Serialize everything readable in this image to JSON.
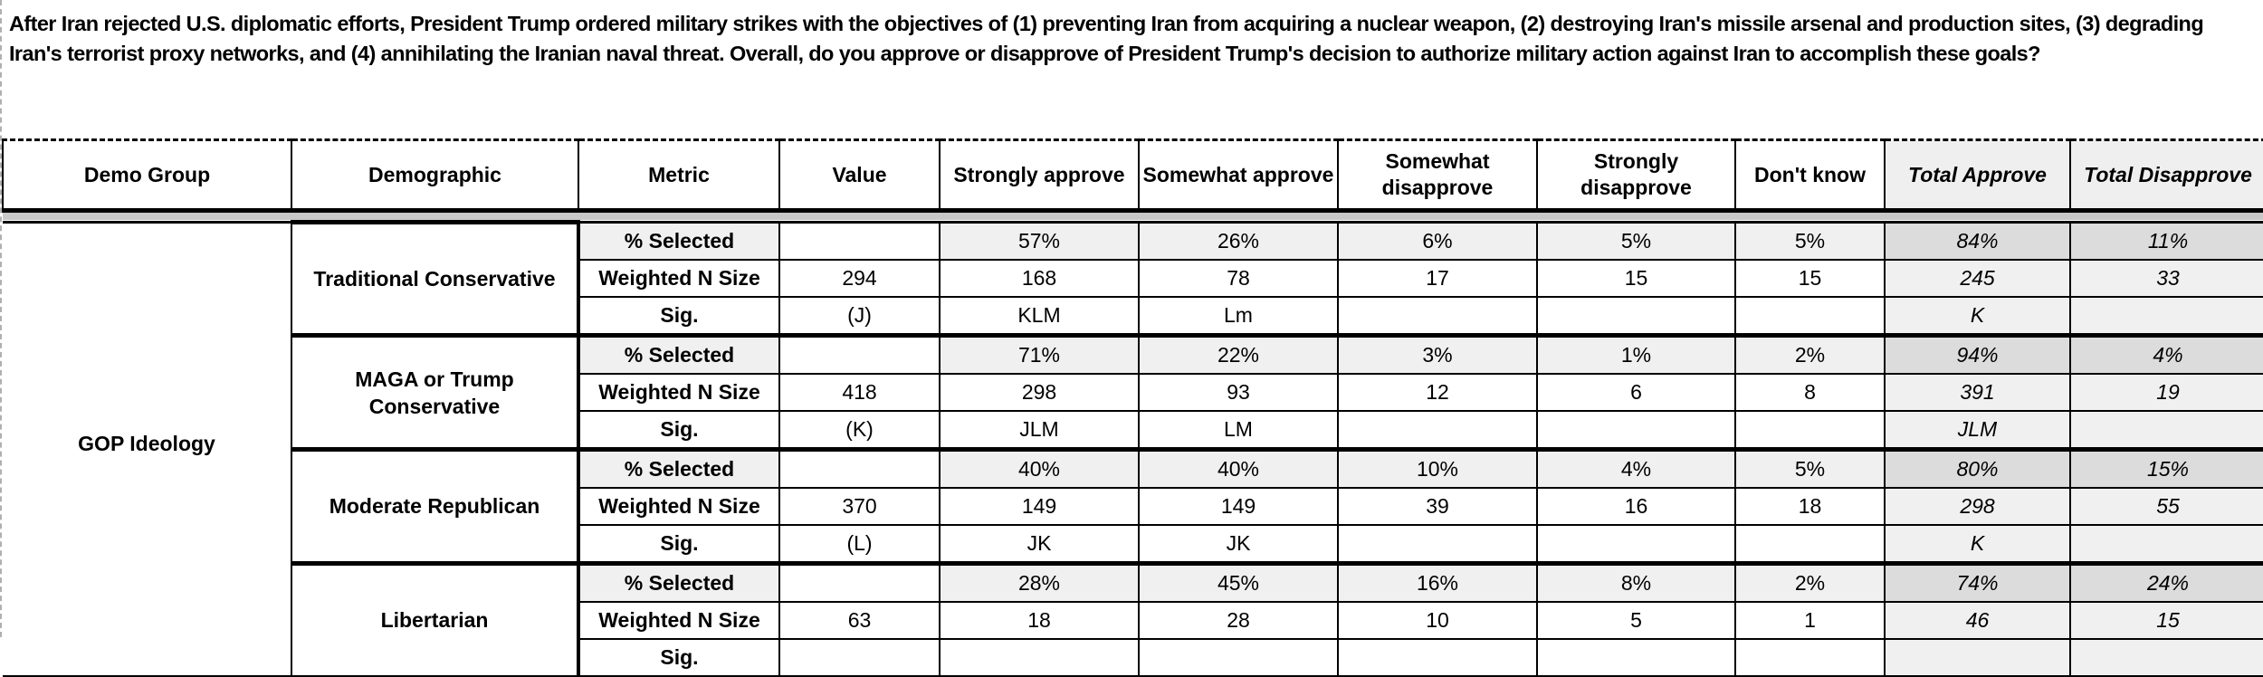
{
  "question": "After Iran rejected U.S. diplomatic efforts, President Trump ordered military strikes with the objectives of (1) preventing Iran from acquiring a nuclear weapon, (2) destroying Iran's missile arsenal and production sites, (3) degrading Iran's terrorist proxy networks, and (4) annihilating the Iranian naval threat. Overall, do you approve or disapprove of President Trump's decision to authorize military action against Iran to accomplish these goals?",
  "headers": [
    "Demo Group",
    "Demographic",
    "Metric",
    "Value",
    "Strongly approve",
    "Somewhat approve",
    "Somewhat disapprove",
    "Strongly disapprove",
    "Don't know",
    "Total Approve",
    "Total Disapprove"
  ],
  "demo_group": "GOP Ideology",
  "metrics": [
    "% Selected",
    "Weighted N Size",
    "Sig."
  ],
  "groups": [
    {
      "name": "Traditional Conservative",
      "rows": [
        [
          "",
          "57%",
          "26%",
          "6%",
          "5%",
          "5%",
          "84%",
          "11%"
        ],
        [
          "294",
          "168",
          "78",
          "17",
          "15",
          "15",
          "245",
          "33"
        ],
        [
          "(J)",
          "KLM",
          "Lm",
          "",
          "",
          "",
          "K",
          ""
        ]
      ]
    },
    {
      "name": "MAGA or Trump Conservative",
      "rows": [
        [
          "",
          "71%",
          "22%",
          "3%",
          "1%",
          "2%",
          "94%",
          "4%"
        ],
        [
          "418",
          "298",
          "93",
          "12",
          "6",
          "8",
          "391",
          "19"
        ],
        [
          "(K)",
          "JLM",
          "LM",
          "",
          "",
          "",
          "JLM",
          ""
        ]
      ]
    },
    {
      "name": "Moderate Republican",
      "rows": [
        [
          "",
          "40%",
          "40%",
          "10%",
          "4%",
          "5%",
          "80%",
          "15%"
        ],
        [
          "370",
          "149",
          "149",
          "39",
          "16",
          "18",
          "298",
          "55"
        ],
        [
          "(L)",
          "JK",
          "JK",
          "",
          "",
          "",
          "K",
          ""
        ]
      ]
    },
    {
      "name": "Libertarian",
      "rows": [
        [
          "",
          "28%",
          "45%",
          "16%",
          "8%",
          "2%",
          "74%",
          "24%"
        ],
        [
          "63",
          "18",
          "28",
          "10",
          "5",
          "1",
          "46",
          "15"
        ],
        [
          "",
          "",
          "",
          "",
          "",
          "",
          "",
          ""
        ]
      ]
    }
  ]
}
